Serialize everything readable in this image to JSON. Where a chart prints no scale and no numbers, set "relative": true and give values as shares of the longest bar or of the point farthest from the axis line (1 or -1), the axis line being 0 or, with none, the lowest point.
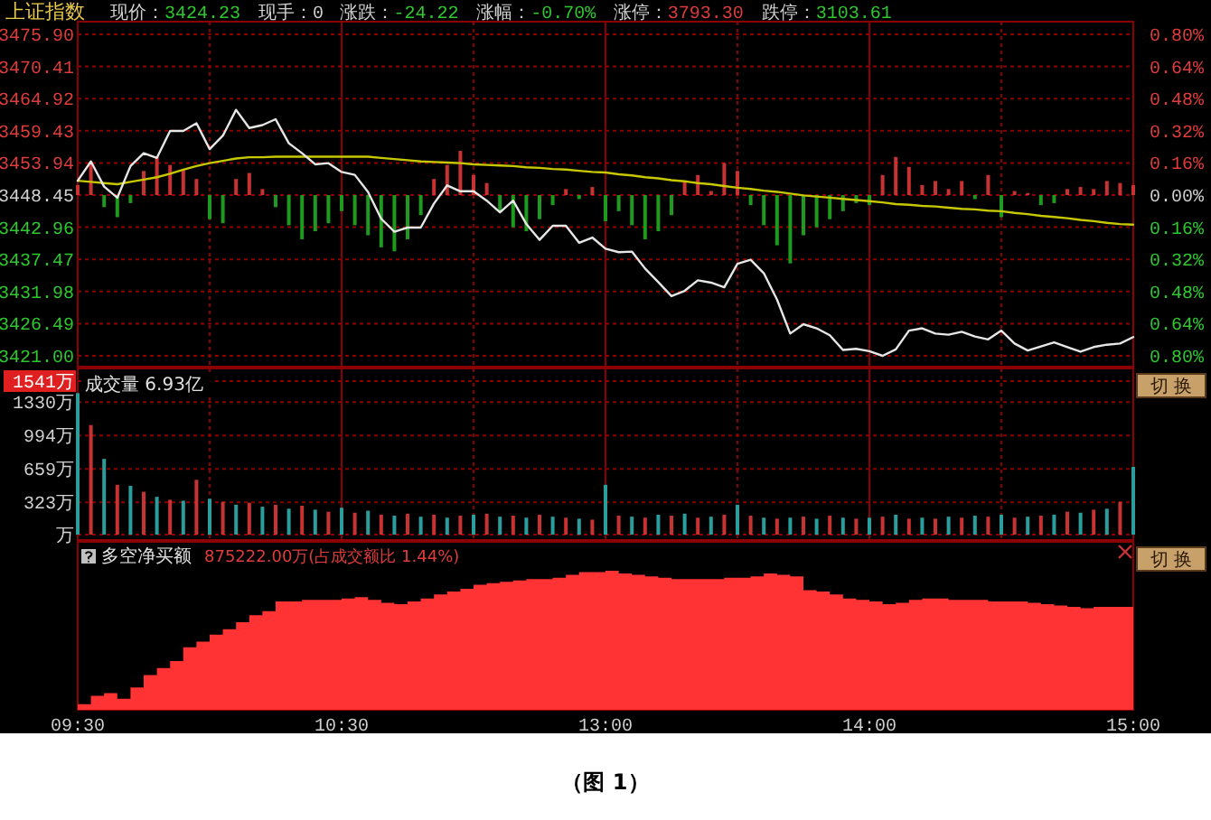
{
  "chart_data": [
    {
      "type": "line",
      "title": "上证指数",
      "annotations": [
        "现价：3424.23",
        "现手：0",
        "涨跌：-24.22",
        "涨幅：-0.70%",
        "涨停：3793.30",
        "跌停：3103.61"
      ],
      "categories": [
        null,
        null,
        null,
        null,
        null,
        null,
        null,
        null,
        null,
        null,
        null,
        null,
        null,
        null,
        null,
        null,
        null,
        null,
        null,
        null,
        null,
        null,
        null,
        null,
        null,
        null,
        null,
        null,
        null,
        null,
        null,
        null,
        null,
        null,
        null,
        null,
        null,
        null,
        null,
        null,
        null,
        null,
        null,
        null,
        null,
        null,
        null,
        null,
        null,
        null,
        null,
        null,
        null,
        null,
        null,
        null,
        null,
        null,
        null,
        null,
        null,
        null,
        null,
        null,
        null,
        null,
        null,
        null,
        null,
        null,
        null,
        null,
        null,
        null,
        null,
        null,
        null,
        null,
        null,
        null,
        null
      ],
      "ylim": [
        3421,
        3475.9
      ],
      "yticks": [
        {
          "value": 3421,
          "label": "3421.00"
        },
        {
          "value": 3426.49,
          "label": "3426.49"
        },
        {
          "value": 3431.98,
          "label": "3431.98"
        },
        {
          "value": 3437.47,
          "label": "3437.47"
        },
        {
          "value": 3442.96,
          "label": "3442.96"
        },
        {
          "value": 3448.45,
          "label": "3448.45"
        },
        {
          "value": 3453.94,
          "label": "3453.94"
        },
        {
          "value": 3459.43,
          "label": "3459.43"
        },
        {
          "value": 3464.92,
          "label": "3464.92"
        },
        {
          "value": 3470.41,
          "label": "3470.41"
        },
        {
          "value": 3475.9,
          "label": "3475.90"
        }
      ],
      "y2lim": [
        -0.8,
        0.8
      ],
      "y2ticks": [
        {
          "value": -0.8,
          "label": "0.80%"
        },
        {
          "value": -0.64,
          "label": "0.64%"
        },
        {
          "value": -0.48,
          "label": "0.48%"
        },
        {
          "value": -0.32,
          "label": "0.32%"
        },
        {
          "value": -0.16,
          "label": "0.16%"
        },
        {
          "value": 0,
          "label": "0.00%"
        },
        {
          "value": 0.16,
          "label": "0.16%"
        },
        {
          "value": 0.32,
          "label": "0.32%"
        },
        {
          "value": 0.48,
          "label": "0.48%"
        },
        {
          "value": 0.64,
          "label": "0.64%"
        },
        {
          "value": 0.8,
          "label": "0.80%"
        }
      ],
      "grid": true,
      "tick_labels": "y",
      "series": [
        {
          "type": "bar",
          "axis": "y2",
          "color": "#c83232",
          "values": [
            0.05,
            0.16,
            null,
            null,
            null,
            0.12,
            0.19,
            0.15,
            0.13,
            0.08,
            null,
            null,
            0.08,
            0.11,
            0.03,
            null,
            null,
            null,
            null,
            null,
            null,
            null,
            null,
            null,
            null,
            null,
            null,
            0.08,
            0.15,
            0.22,
            0.1,
            0.06,
            null,
            null,
            null,
            null,
            null,
            0.03,
            null,
            0.04,
            null,
            null,
            null,
            null,
            null,
            null,
            0.07,
            0.1,
            0.02,
            0.16,
            0.12,
            null,
            null,
            null,
            null,
            null,
            null,
            null,
            null,
            null,
            null,
            0.1,
            0.19,
            0.14,
            0.05,
            0.07,
            0.03,
            0.07,
            null,
            0.1,
            null,
            0.02,
            0.01,
            null,
            null,
            0.03,
            0.04,
            0.03,
            0.07,
            0.06,
            0.05
          ]
        },
        {
          "type": "bar",
          "axis": "y2",
          "color": "#1e9a1e",
          "values": [
            null,
            null,
            -0.06,
            -0.11,
            -0.04,
            null,
            null,
            null,
            null,
            null,
            -0.12,
            -0.14,
            null,
            null,
            null,
            -0.06,
            -0.15,
            -0.22,
            -0.18,
            -0.14,
            -0.08,
            -0.15,
            -0.2,
            -0.26,
            -0.28,
            -0.22,
            -0.1,
            null,
            null,
            null,
            null,
            null,
            -0.08,
            -0.16,
            -0.18,
            -0.12,
            -0.05,
            null,
            -0.02,
            null,
            -0.13,
            -0.08,
            -0.15,
            -0.22,
            -0.18,
            -0.1,
            null,
            null,
            null,
            null,
            null,
            -0.05,
            -0.15,
            -0.25,
            -0.34,
            -0.2,
            -0.16,
            -0.12,
            -0.08,
            -0.04,
            -0.05,
            null,
            null,
            null,
            null,
            null,
            null,
            null,
            -0.02,
            null,
            -0.11,
            null,
            null,
            -0.05,
            -0.04,
            null,
            null,
            null,
            null,
            null,
            null
          ]
        },
        {
          "color": "#c8c800",
          "values": [
            3450.9,
            3450.7,
            3450.5,
            3450.3,
            3450.7,
            3451.1,
            3451.5,
            3452.1,
            3452.8,
            3453.4,
            3453.9,
            3454.3,
            3454.7,
            3454.9,
            3454.9,
            3455.0,
            3455.0,
            3455.0,
            3455.0,
            3455.0,
            3455.0,
            3455.0,
            3455.0,
            3454.8,
            3454.6,
            3454.4,
            3454.2,
            3454.1,
            3454.0,
            3453.9,
            3453.7,
            3453.6,
            3453.5,
            3453.4,
            3453.2,
            3453.1,
            3452.9,
            3452.8,
            3452.6,
            3452.4,
            3452.3,
            3452.0,
            3451.8,
            3451.5,
            3451.3,
            3451.0,
            3450.8,
            3450.5,
            3450.3,
            3450.0,
            3449.7,
            3449.5,
            3449.2,
            3449.0,
            3448.7,
            3448.4,
            3448.2,
            3448.0,
            3447.8,
            3447.6,
            3447.4,
            3447.2,
            3446.9,
            3446.8,
            3446.6,
            3446.5,
            3446.3,
            3446.1,
            3446.0,
            3445.8,
            3445.7,
            3445.4,
            3445.2,
            3444.9,
            3444.7,
            3444.5,
            3444.2,
            3444.0,
            3443.7,
            3443.5,
            3443.4
          ]
        },
        {
          "color": "#e6e6e6",
          "values": [
            3450.9,
            3454.2,
            3449.9,
            3448.0,
            3453.4,
            3455.6,
            3454.8,
            3459.4,
            3459.4,
            3460.7,
            3456.3,
            3458.6,
            3463.0,
            3459.9,
            3460.4,
            3461.4,
            3457.3,
            3455.6,
            3453.7,
            3453.9,
            3452.4,
            3451.9,
            3449.0,
            3444.4,
            3442.2,
            3442.9,
            3442.9,
            3447.0,
            3450.1,
            3449.1,
            3449.1,
            3447.5,
            3445.5,
            3447.5,
            3443.5,
            3440.8,
            3443.2,
            3443.2,
            3440.3,
            3441.2,
            3439.3,
            3438.7,
            3438.8,
            3435.9,
            3433.6,
            3431.2,
            3432.1,
            3433.9,
            3433.5,
            3432.7,
            3436.7,
            3437.4,
            3435.1,
            3430.6,
            3424.8,
            3426.4,
            3425.7,
            3424.5,
            3422.0,
            3422.2,
            3421.8,
            3421.0,
            3422.1,
            3425.3,
            3425.7,
            3424.8,
            3424.6,
            3425.1,
            3424.3,
            3423.8,
            3425.3,
            3423.1,
            3421.9,
            3422.6,
            3423.3,
            3422.5,
            3421.7,
            3422.5,
            3422.9,
            3423.1,
            3424.2
          ]
        }
      ]
    },
    {
      "type": "bar",
      "title": "成交量 6.93亿",
      "annotations": [
        "切 换"
      ],
      "categories": [
        null,
        null,
        null,
        null,
        null,
        null,
        null,
        null,
        null,
        null,
        null,
        null,
        null,
        null,
        null,
        null,
        null,
        null,
        null,
        null,
        null,
        null,
        null,
        null,
        null,
        null,
        null,
        null,
        null,
        null,
        null,
        null,
        null,
        null,
        null,
        null,
        null,
        null,
        null,
        null,
        null,
        null,
        null,
        null,
        null,
        null,
        null,
        null,
        null,
        null,
        null,
        null,
        null,
        null,
        null,
        null,
        null,
        null,
        null,
        null,
        null,
        null,
        null,
        null,
        null,
        null,
        null,
        null,
        null,
        null,
        null,
        null,
        null,
        null,
        null,
        null,
        null,
        null,
        null,
        null,
        null
      ],
      "ylim": [
        0,
        1541
      ],
      "yticks": [
        {
          "value": 0,
          "label": "万"
        },
        {
          "value": 323,
          "label": "323万"
        },
        {
          "value": 659,
          "label": "659万"
        },
        {
          "value": 994,
          "label": "994万"
        },
        {
          "value": 1330,
          "label": "1330万"
        },
        {
          "value": 1541,
          "label": "1541万"
        }
      ],
      "grid": true,
      "tick_labels": "y",
      "series": [
        {
          "color": "#2a9d9d",
          "values": [
            1420,
            null,
            760,
            null,
            490,
            null,
            380,
            null,
            340,
            null,
            360,
            null,
            300,
            null,
            280,
            null,
            260,
            null,
            250,
            null,
            270,
            null,
            240,
            null,
            190,
            null,
            180,
            null,
            170,
            null,
            200,
            null,
            180,
            null,
            170,
            null,
            180,
            null,
            160,
            null,
            500,
            null,
            180,
            null,
            200,
            null,
            210,
            null,
            180,
            null,
            300,
            null,
            170,
            null,
            170,
            null,
            160,
            null,
            170,
            null,
            170,
            null,
            200,
            null,
            170,
            null,
            180,
            null,
            190,
            null,
            200,
            null,
            180,
            null,
            200,
            null,
            220,
            null,
            260,
            null,
            680
          ]
        },
        {
          "color": "#c83232",
          "values": [
            null,
            1100,
            null,
            500,
            null,
            430,
            null,
            350,
            null,
            550,
            null,
            330,
            null,
            320,
            null,
            300,
            null,
            290,
            null,
            230,
            null,
            220,
            null,
            200,
            null,
            210,
            null,
            200,
            null,
            190,
            null,
            210,
            null,
            190,
            null,
            200,
            null,
            170,
            null,
            150,
            null,
            190,
            null,
            170,
            null,
            190,
            null,
            170,
            null,
            200,
            null,
            190,
            null,
            160,
            null,
            180,
            null,
            190,
            null,
            160,
            null,
            180,
            null,
            160,
            null,
            160,
            null,
            170,
            null,
            180,
            null,
            170,
            null,
            190,
            null,
            230,
            null,
            250,
            null,
            330,
            null
          ]
        }
      ]
    },
    {
      "type": "area",
      "relative": true,
      "title": "多空净买额",
      "subtitle": "875222.00万(占成交额比 1.44%)",
      "annotations": [
        "切 换",
        "（图 1）"
      ],
      "categories": [
        "09:30",
        null,
        null,
        null,
        null,
        null,
        null,
        null,
        null,
        null,
        null,
        null,
        null,
        null,
        null,
        null,
        null,
        null,
        null,
        null,
        "10:30",
        null,
        null,
        null,
        null,
        null,
        null,
        null,
        null,
        null,
        null,
        null,
        null,
        null,
        null,
        null,
        null,
        null,
        null,
        null,
        "13:00",
        null,
        null,
        null,
        null,
        null,
        null,
        null,
        null,
        null,
        null,
        null,
        null,
        null,
        null,
        null,
        null,
        null,
        null,
        null,
        "14:00",
        null,
        null,
        null,
        null,
        null,
        null,
        null,
        null,
        null,
        null,
        null,
        null,
        null,
        null,
        null,
        null,
        null,
        null,
        null,
        "15:00"
      ],
      "tick_labels": "x",
      "color": "#ff3333",
      "values": [
        0.04,
        0.1,
        0.12,
        0.08,
        0.16,
        0.25,
        0.3,
        0.35,
        0.45,
        0.49,
        0.54,
        0.58,
        0.63,
        0.68,
        0.71,
        0.78,
        0.78,
        0.79,
        0.79,
        0.79,
        0.8,
        0.81,
        0.79,
        0.77,
        0.76,
        0.78,
        0.8,
        0.83,
        0.85,
        0.87,
        0.9,
        0.91,
        0.92,
        0.93,
        0.94,
        0.94,
        0.95,
        0.97,
        0.99,
        0.99,
        1,
        0.98,
        0.97,
        0.96,
        0.95,
        0.94,
        0.94,
        0.94,
        0.94,
        0.95,
        0.95,
        0.96,
        0.98,
        0.97,
        0.96,
        0.86,
        0.85,
        0.83,
        0.8,
        0.79,
        0.78,
        0.76,
        0.77,
        0.79,
        0.8,
        0.8,
        0.79,
        0.79,
        0.79,
        0.78,
        0.78,
        0.78,
        0.77,
        0.76,
        0.75,
        0.74,
        0.73,
        0.74,
        0.74,
        0.74,
        0.69
      ]
    }
  ]
}
